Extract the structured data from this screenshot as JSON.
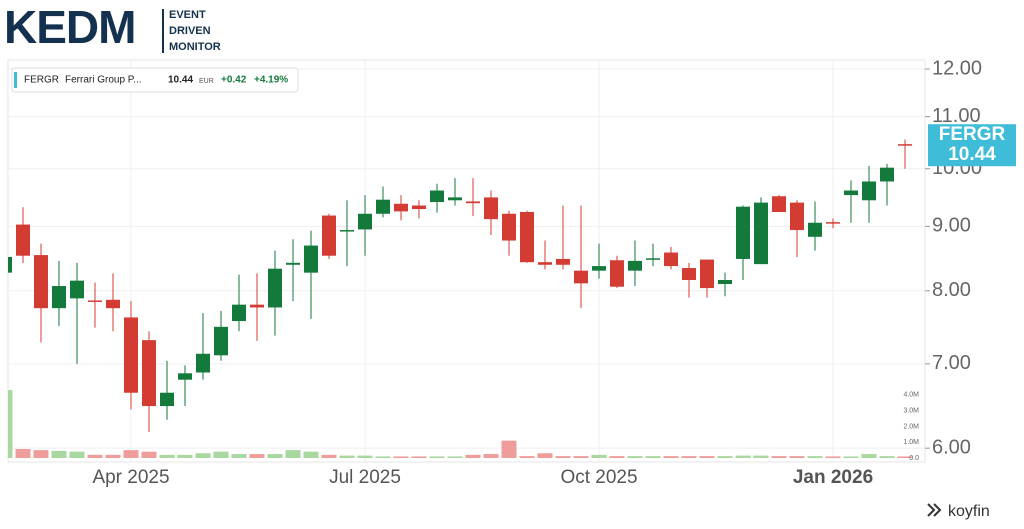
{
  "brand": {
    "logo": "KEDM",
    "tagline": [
      "EVENT",
      "DRIVEN",
      "MONITOR"
    ],
    "footer": "koyfin"
  },
  "chart_data": {
    "type": "candlestick",
    "log_y": true,
    "grid": true,
    "quote": {
      "symbol": "FERGR",
      "name": "Ferrari Group P...",
      "price": 10.44,
      "currency": "EUR",
      "values": [
        0.42,
        4.19
      ],
      "value_labels": [
        "+0.42",
        "+4.19%"
      ]
    },
    "up_color": "#137a3c",
    "down_color": "#d33c33",
    "volume_up_color": "#a8d8a0",
    "volume_down_color": "#ef9d9b",
    "badge_color": "#3fbcd8",
    "categories": [
      null,
      null,
      null,
      null,
      null,
      null,
      null,
      "Apr 2025",
      null,
      null,
      null,
      null,
      null,
      null,
      null,
      null,
      null,
      null,
      null,
      null,
      "Jul 2025",
      null,
      null,
      null,
      null,
      null,
      null,
      null,
      null,
      null,
      null,
      null,
      null,
      "Oct 2025",
      null,
      null,
      null,
      null,
      null,
      null,
      null,
      null,
      null,
      null,
      null,
      null,
      "Jan 2026",
      null,
      null,
      null,
      null
    ],
    "open": [
      8.27,
      9.03,
      8.54,
      7.75,
      7.89,
      7.86,
      7.87,
      7.62,
      7.31,
      6.48,
      6.8,
      6.89,
      7.11,
      7.57,
      7.8,
      7.76,
      8.39,
      8.27,
      9.18,
      8.93,
      8.95,
      9.21,
      9.38,
      9.35,
      9.41,
      9.44,
      9.42,
      9.49,
      9.21,
      9.24,
      8.43,
      8.48,
      8.3,
      8.3,
      8.46,
      8.3,
      8.48,
      8.58,
      8.34,
      8.47,
      8.1,
      8.48,
      8.4,
      9.51,
      9.4,
      8.83,
      9.07,
      9.53,
      9.44,
      9.77,
      10.46
    ],
    "high": [
      8.6,
      9.32,
      8.72,
      8.45,
      8.42,
      8.12,
      8.26,
      7.85,
      7.43,
      7.04,
      6.98,
      7.68,
      7.71,
      8.24,
      8.26,
      8.61,
      8.79,
      8.93,
      9.21,
      9.44,
      9.53,
      9.68,
      9.53,
      9.44,
      9.73,
      9.83,
      9.83,
      9.61,
      9.26,
      9.26,
      8.77,
      9.35,
      9.35,
      8.72,
      8.53,
      8.77,
      8.72,
      8.67,
      8.42,
      8.47,
      8.27,
      9.35,
      9.49,
      9.53,
      9.44,
      9.42,
      9.13,
      9.79,
      10.05,
      10.09,
      10.55
    ],
    "low": [
      8.2,
      8.42,
      7.28,
      7.5,
      7.0,
      7.48,
      7.43,
      6.44,
      6.18,
      6.32,
      6.48,
      6.8,
      7.04,
      7.43,
      7.3,
      7.37,
      7.85,
      7.6,
      8.48,
      8.37,
      8.53,
      9.15,
      9.1,
      9.13,
      9.23,
      9.35,
      9.17,
      8.86,
      8.53,
      8.42,
      8.32,
      8.32,
      7.75,
      8.18,
      8.04,
      8.07,
      8.37,
      8.32,
      7.9,
      7.9,
      7.92,
      8.16,
      8.4,
      9.24,
      8.51,
      8.61,
      8.97,
      9.06,
      9.06,
      9.35,
      10.0
    ],
    "close": [
      8.51,
      8.53,
      7.75,
      8.07,
      8.15,
      7.84,
      7.75,
      6.64,
      6.48,
      6.64,
      6.88,
      7.13,
      7.49,
      7.8,
      7.76,
      8.33,
      8.42,
      8.69,
      8.53,
      8.94,
      9.21,
      9.45,
      9.25,
      9.29,
      9.61,
      9.49,
      9.39,
      9.12,
      8.77,
      8.43,
      8.39,
      8.39,
      8.11,
      8.37,
      8.06,
      8.45,
      8.49,
      8.37,
      8.16,
      8.04,
      8.16,
      9.33,
      9.4,
      9.24,
      8.94,
      9.06,
      9.05,
      9.61,
      9.77,
      10.02,
      10.44
    ],
    "volume": [
      4300000,
      570000,
      500000,
      450000,
      400000,
      200000,
      200000,
      500000,
      400000,
      200000,
      200000,
      300000,
      400000,
      250000,
      250000,
      250000,
      500000,
      400000,
      200000,
      150000,
      150000,
      100000,
      100000,
      100000,
      100000,
      100000,
      200000,
      250000,
      1100000,
      120000,
      300000,
      120000,
      120000,
      200000,
      120000,
      120000,
      120000,
      120000,
      120000,
      120000,
      120000,
      150000,
      150000,
      120000,
      120000,
      120000,
      100000,
      100000,
      250000,
      120000,
      100000
    ],
    "ylim": [
      5.85,
      12.2
    ],
    "yticks": [
      {
        "value": 6,
        "label": "6.00"
      },
      {
        "value": 7,
        "label": "7.00"
      },
      {
        "value": 8,
        "label": "8.00"
      },
      {
        "value": 9,
        "label": "9.00"
      },
      {
        "value": 10,
        "label": "10.00"
      },
      {
        "value": 11,
        "label": "11.00"
      },
      {
        "value": 12,
        "label": "12.00"
      }
    ],
    "y2lim": [
      0,
      25200000
    ],
    "y2ticks": [
      {
        "value": 0,
        "label": "0.0"
      },
      {
        "value": 1000000,
        "label": "1.0M"
      },
      {
        "value": 2000000,
        "label": "2.0M"
      },
      {
        "value": 3000000,
        "label": "3.0M"
      },
      {
        "value": 4000000,
        "label": "4.0M"
      }
    ]
  }
}
